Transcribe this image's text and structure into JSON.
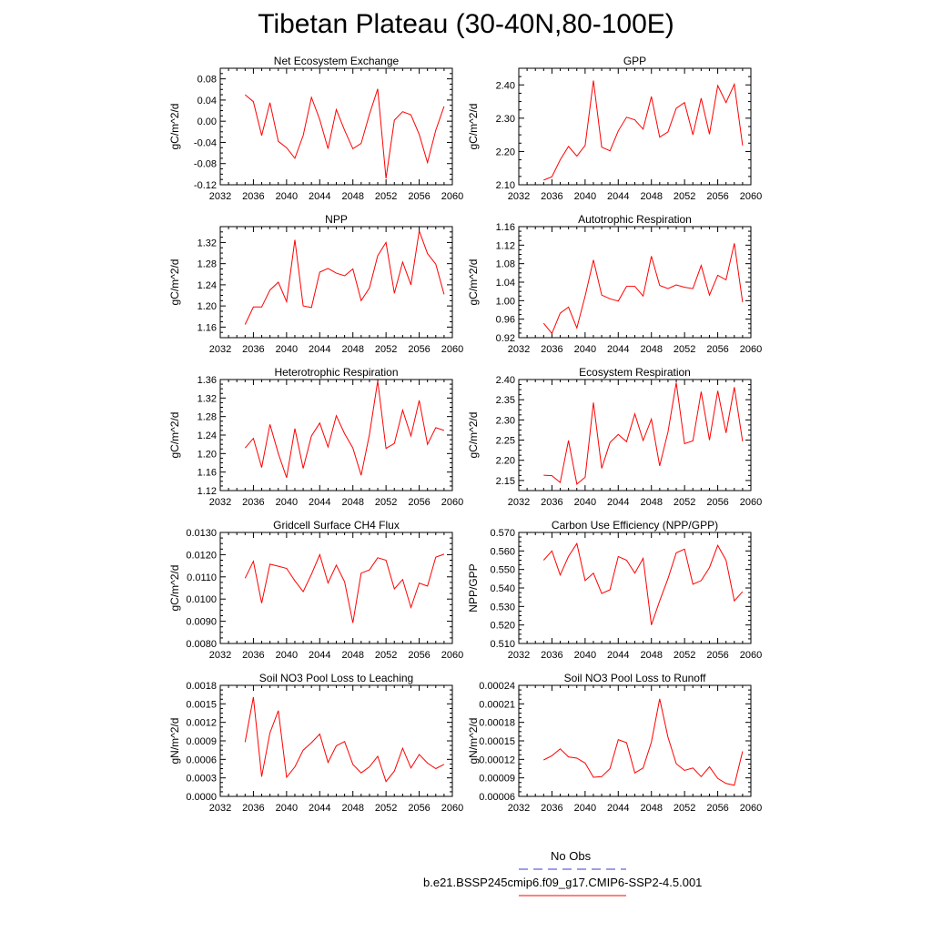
{
  "page_title": "Tibetan Plateau (30-40N,80-100E)",
  "colors": {
    "series_line": "#ff0000",
    "obs_line": "#3b3bd8",
    "axis": "#000000"
  },
  "legend": {
    "obs_label": "No Obs",
    "series_label": "b.e21.BSSP245cmip6.f09_g17.CMIP6-SSP2-4.5.001"
  },
  "chart_data": [
    {
      "type": "line",
      "title": "Net Ecosystem Exchange",
      "ylabel": "gC/m^2/d",
      "xlim": [
        2032,
        2060
      ],
      "ylim": [
        -0.12,
        0.1
      ],
      "xticks": [
        2032,
        2036,
        2040,
        2044,
        2048,
        2052,
        2056,
        2060
      ],
      "xtick_labels": [
        "2032",
        "2036",
        "2040",
        "2044",
        "2048",
        "2052",
        "2056",
        "2060"
      ],
      "yticks": [
        -0.12,
        -0.08,
        -0.04,
        0.0,
        0.04,
        0.08
      ],
      "ytick_labels": [
        "-0.12",
        "-0.08",
        "-0.04",
        "0.00",
        "0.04",
        "0.08"
      ],
      "x": [
        2035,
        2036,
        2037,
        2038,
        2039,
        2040,
        2041,
        2042,
        2043,
        2044,
        2045,
        2046,
        2047,
        2048,
        2049,
        2050,
        2051,
        2052,
        2053,
        2054,
        2055,
        2056,
        2057,
        2058,
        2059
      ],
      "series": [
        {
          "values": [
            0.05,
            0.037,
            -0.027,
            0.035,
            -0.038,
            -0.05,
            -0.07,
            -0.027,
            0.045,
            0.003,
            -0.052,
            0.022,
            -0.017,
            -0.052,
            -0.042,
            0.013,
            0.061,
            -0.108,
            0.002,
            0.018,
            0.012,
            -0.025,
            -0.078,
            -0.017,
            0.028
          ]
        }
      ]
    },
    {
      "type": "line",
      "title": "GPP",
      "ylabel": "gC/m^2/d",
      "xlim": [
        2032,
        2060
      ],
      "ylim": [
        2.1,
        2.45
      ],
      "xticks": [
        2032,
        2036,
        2040,
        2044,
        2048,
        2052,
        2056,
        2060
      ],
      "xtick_labels": [
        "2032",
        "2036",
        "2040",
        "2044",
        "2048",
        "2052",
        "2056",
        "2060"
      ],
      "yticks": [
        2.1,
        2.2,
        2.3,
        2.4
      ],
      "ytick_labels": [
        "2.10",
        "2.20",
        "2.30",
        "2.40"
      ],
      "x": [
        2035,
        2036,
        2037,
        2038,
        2039,
        2040,
        2041,
        2042,
        2043,
        2044,
        2045,
        2046,
        2047,
        2048,
        2049,
        2050,
        2051,
        2052,
        2053,
        2054,
        2055,
        2056,
        2057,
        2058,
        2059
      ],
      "series": [
        {
          "values": [
            2.114,
            2.124,
            2.175,
            2.215,
            2.186,
            2.218,
            2.413,
            2.213,
            2.202,
            2.262,
            2.303,
            2.295,
            2.267,
            2.365,
            2.243,
            2.259,
            2.33,
            2.347,
            2.25,
            2.36,
            2.252,
            2.398,
            2.347,
            2.402,
            2.218
          ]
        }
      ]
    },
    {
      "type": "line",
      "title": "NPP",
      "ylabel": "gC/m^2/d",
      "xlim": [
        2032,
        2060
      ],
      "ylim": [
        1.14,
        1.35
      ],
      "xticks": [
        2032,
        2036,
        2040,
        2044,
        2048,
        2052,
        2056,
        2060
      ],
      "xtick_labels": [
        "2032",
        "2036",
        "2040",
        "2044",
        "2048",
        "2052",
        "2056",
        "2060"
      ],
      "yticks": [
        1.16,
        1.2,
        1.24,
        1.28,
        1.32
      ],
      "ytick_labels": [
        "1.16",
        "1.20",
        "1.24",
        "1.28",
        "1.32"
      ],
      "x": [
        2035,
        2036,
        2037,
        2038,
        2039,
        2040,
        2041,
        2042,
        2043,
        2044,
        2045,
        2046,
        2047,
        2048,
        2049,
        2050,
        2051,
        2052,
        2053,
        2054,
        2055,
        2056,
        2057,
        2058,
        2059
      ],
      "series": [
        {
          "values": [
            1.165,
            1.198,
            1.198,
            1.23,
            1.245,
            1.208,
            1.325,
            1.2,
            1.197,
            1.264,
            1.271,
            1.262,
            1.257,
            1.27,
            1.21,
            1.234,
            1.295,
            1.32,
            1.224,
            1.283,
            1.24,
            1.342,
            1.299,
            1.279,
            1.222
          ]
        }
      ]
    },
    {
      "type": "line",
      "title": "Autotrophic Respiration",
      "ylabel": "gC/m^2/d",
      "xlim": [
        2032,
        2060
      ],
      "ylim": [
        0.92,
        1.16
      ],
      "xticks": [
        2032,
        2036,
        2040,
        2044,
        2048,
        2052,
        2056,
        2060
      ],
      "xtick_labels": [
        "2032",
        "2036",
        "2040",
        "2044",
        "2048",
        "2052",
        "2056",
        "2060"
      ],
      "yticks": [
        0.92,
        0.96,
        1.0,
        1.04,
        1.08,
        1.12,
        1.16
      ],
      "ytick_labels": [
        "0.92",
        "0.96",
        "1.00",
        "1.04",
        "1.08",
        "1.12",
        "1.16"
      ],
      "x": [
        2035,
        2036,
        2037,
        2038,
        2039,
        2040,
        2041,
        2042,
        2043,
        2044,
        2045,
        2046,
        2047,
        2048,
        2049,
        2050,
        2051,
        2052,
        2053,
        2054,
        2055,
        2056,
        2057,
        2058,
        2059
      ],
      "series": [
        {
          "values": [
            0.951,
            0.929,
            0.973,
            0.986,
            0.941,
            1.01,
            1.088,
            1.012,
            1.004,
            0.999,
            1.031,
            1.031,
            1.01,
            1.096,
            1.033,
            1.026,
            1.034,
            1.029,
            1.026,
            1.076,
            1.012,
            1.055,
            1.045,
            1.124,
            0.997
          ]
        }
      ]
    },
    {
      "type": "line",
      "title": "Heterotrophic Respiration",
      "ylabel": "gC/m^2/d",
      "xlim": [
        2032,
        2060
      ],
      "ylim": [
        1.12,
        1.36
      ],
      "xticks": [
        2032,
        2036,
        2040,
        2044,
        2048,
        2052,
        2056,
        2060
      ],
      "xtick_labels": [
        "2032",
        "2036",
        "2040",
        "2044",
        "2048",
        "2052",
        "2056",
        "2060"
      ],
      "yticks": [
        1.12,
        1.16,
        1.2,
        1.24,
        1.28,
        1.32,
        1.36
      ],
      "ytick_labels": [
        "1.12",
        "1.16",
        "1.20",
        "1.24",
        "1.28",
        "1.32",
        "1.36"
      ],
      "x": [
        2035,
        2036,
        2037,
        2038,
        2039,
        2040,
        2041,
        2042,
        2043,
        2044,
        2045,
        2046,
        2047,
        2048,
        2049,
        2050,
        2051,
        2052,
        2053,
        2054,
        2055,
        2056,
        2057,
        2058,
        2059
      ],
      "series": [
        {
          "values": [
            1.212,
            1.233,
            1.17,
            1.263,
            1.2,
            1.148,
            1.254,
            1.168,
            1.238,
            1.266,
            1.214,
            1.282,
            1.243,
            1.212,
            1.153,
            1.241,
            1.357,
            1.211,
            1.222,
            1.294,
            1.238,
            1.315,
            1.22,
            1.256,
            1.25
          ]
        }
      ]
    },
    {
      "type": "line",
      "title": "Ecosystem Respiration",
      "ylabel": "gC/m^2/d",
      "xlim": [
        2032,
        2060
      ],
      "ylim": [
        2.125,
        2.4
      ],
      "xticks": [
        2032,
        2036,
        2040,
        2044,
        2048,
        2052,
        2056,
        2060
      ],
      "xtick_labels": [
        "2032",
        "2036",
        "2040",
        "2044",
        "2048",
        "2052",
        "2056",
        "2060"
      ],
      "yticks": [
        2.15,
        2.2,
        2.25,
        2.3,
        2.35,
        2.4
      ],
      "ytick_labels": [
        "2.15",
        "2.20",
        "2.25",
        "2.30",
        "2.35",
        "2.40"
      ],
      "x": [
        2035,
        2036,
        2037,
        2038,
        2039,
        2040,
        2041,
        2042,
        2043,
        2044,
        2045,
        2046,
        2047,
        2048,
        2049,
        2050,
        2051,
        2052,
        2053,
        2054,
        2055,
        2056,
        2057,
        2058,
        2059
      ],
      "series": [
        {
          "values": [
            2.163,
            2.162,
            2.145,
            2.249,
            2.141,
            2.158,
            2.343,
            2.18,
            2.244,
            2.264,
            2.246,
            2.315,
            2.249,
            2.302,
            2.186,
            2.27,
            2.392,
            2.241,
            2.248,
            2.37,
            2.25,
            2.372,
            2.268,
            2.381,
            2.247
          ]
        }
      ]
    },
    {
      "type": "line",
      "title": "Gridcell Surface CH4 Flux",
      "ylabel": "gC/m^2/d",
      "xlim": [
        2032,
        2060
      ],
      "ylim": [
        0.008,
        0.013
      ],
      "xticks": [
        2032,
        2036,
        2040,
        2044,
        2048,
        2052,
        2056,
        2060
      ],
      "xtick_labels": [
        "2032",
        "2036",
        "2040",
        "2044",
        "2048",
        "2052",
        "2056",
        "2060"
      ],
      "yticks": [
        0.008,
        0.009,
        0.01,
        0.011,
        0.012,
        0.013
      ],
      "ytick_labels": [
        "0.0080",
        "0.0090",
        "0.0100",
        "0.0110",
        "0.0120",
        "0.0130"
      ],
      "x": [
        2035,
        2036,
        2037,
        2038,
        2039,
        2040,
        2041,
        2042,
        2043,
        2044,
        2045,
        2046,
        2047,
        2048,
        2049,
        2050,
        2051,
        2052,
        2053,
        2054,
        2055,
        2056,
        2057,
        2058,
        2059
      ],
      "series": [
        {
          "values": [
            0.01094,
            0.0117,
            0.00982,
            0.01157,
            0.01148,
            0.01138,
            0.01082,
            0.01033,
            0.01112,
            0.012,
            0.01072,
            0.01153,
            0.01078,
            0.00893,
            0.01117,
            0.01131,
            0.01186,
            0.01175,
            0.01046,
            0.01088,
            0.00962,
            0.01072,
            0.01058,
            0.01189,
            0.01202
          ]
        }
      ]
    },
    {
      "type": "line",
      "title": "Carbon Use Efficiency (NPP/GPP)",
      "ylabel": "NPP/GPP",
      "xlim": [
        2032,
        2060
      ],
      "ylim": [
        0.51,
        0.57
      ],
      "xticks": [
        2032,
        2036,
        2040,
        2044,
        2048,
        2052,
        2056,
        2060
      ],
      "xtick_labels": [
        "2032",
        "2036",
        "2040",
        "2044",
        "2048",
        "2052",
        "2056",
        "2060"
      ],
      "yticks": [
        0.51,
        0.52,
        0.53,
        0.54,
        0.55,
        0.56,
        0.57
      ],
      "ytick_labels": [
        "0.510",
        "0.520",
        "0.530",
        "0.540",
        "0.550",
        "0.560",
        "0.570"
      ],
      "x": [
        2035,
        2036,
        2037,
        2038,
        2039,
        2040,
        2041,
        2042,
        2043,
        2044,
        2045,
        2046,
        2047,
        2048,
        2049,
        2050,
        2051,
        2052,
        2053,
        2054,
        2055,
        2056,
        2057,
        2058,
        2059
      ],
      "series": [
        {
          "values": [
            0.555,
            0.56,
            0.547,
            0.557,
            0.564,
            0.544,
            0.548,
            0.537,
            0.539,
            0.557,
            0.555,
            0.548,
            0.556,
            0.52,
            0.533,
            0.545,
            0.559,
            0.561,
            0.542,
            0.544,
            0.551,
            0.563,
            0.555,
            0.533,
            0.538
          ]
        }
      ]
    },
    {
      "type": "line",
      "title": "Soil NO3 Pool Loss to Leaching",
      "ylabel": "gN/m^2/d",
      "xlim": [
        2032,
        2060
      ],
      "ylim": [
        0.0,
        0.0018
      ],
      "xticks": [
        2032,
        2036,
        2040,
        2044,
        2048,
        2052,
        2056,
        2060
      ],
      "xtick_labels": [
        "2032",
        "2036",
        "2040",
        "2044",
        "2048",
        "2052",
        "2056",
        "2060"
      ],
      "yticks": [
        0.0,
        0.0003,
        0.0006,
        0.0009,
        0.0012,
        0.0015,
        0.0018
      ],
      "ytick_labels": [
        "0.0000",
        "0.0003",
        "0.0006",
        "0.0009",
        "0.0012",
        "0.0015",
        "0.0018"
      ],
      "x": [
        2035,
        2036,
        2037,
        2038,
        2039,
        2040,
        2041,
        2042,
        2043,
        2044,
        2045,
        2046,
        2047,
        2048,
        2049,
        2050,
        2051,
        2052,
        2053,
        2054,
        2055,
        2056,
        2057,
        2058,
        2059
      ],
      "series": [
        {
          "values": [
            0.00088,
            0.00161,
            0.00032,
            0.00103,
            0.00139,
            0.00031,
            0.00048,
            0.00075,
            0.00087,
            0.00101,
            0.00055,
            0.00082,
            0.00089,
            0.00052,
            0.00038,
            0.00048,
            0.00065,
            0.00024,
            0.00041,
            0.00078,
            0.00046,
            0.00068,
            0.00054,
            0.00045,
            0.00052
          ]
        }
      ]
    },
    {
      "type": "line",
      "title": "Soil NO3 Pool Loss to Runoff",
      "ylabel": "gN/m^2/d",
      "xlim": [
        2032,
        2060
      ],
      "ylim": [
        6e-05,
        0.00024
      ],
      "xticks": [
        2032,
        2036,
        2040,
        2044,
        2048,
        2052,
        2056,
        2060
      ],
      "xtick_labels": [
        "2032",
        "2036",
        "2040",
        "2044",
        "2048",
        "2052",
        "2056",
        "2060"
      ],
      "yticks": [
        6e-05,
        9e-05,
        0.00012,
        0.00015,
        0.00018,
        0.00021,
        0.00024
      ],
      "ytick_labels": [
        "0.00006",
        "0.00009",
        "0.00012",
        "0.00015",
        "0.00018",
        "0.00021",
        "0.00024"
      ],
      "x": [
        2035,
        2036,
        2037,
        2038,
        2039,
        2040,
        2041,
        2042,
        2043,
        2044,
        2045,
        2046,
        2047,
        2048,
        2049,
        2050,
        2051,
        2052,
        2053,
        2054,
        2055,
        2056,
        2057,
        2058,
        2059
      ],
      "series": [
        {
          "values": [
            0.000119,
            0.000126,
            0.000137,
            0.000124,
            0.000122,
            0.000114,
            9.1e-05,
            9.2e-05,
            0.000105,
            0.000152,
            0.000147,
            9.8e-05,
            0.000106,
            0.000148,
            0.000218,
            0.000156,
            0.000113,
            0.000102,
            0.000106,
            9.2e-05,
            0.000108,
            8.9e-05,
            8.1e-05,
            7.8e-05,
            0.000133
          ]
        }
      ]
    }
  ]
}
